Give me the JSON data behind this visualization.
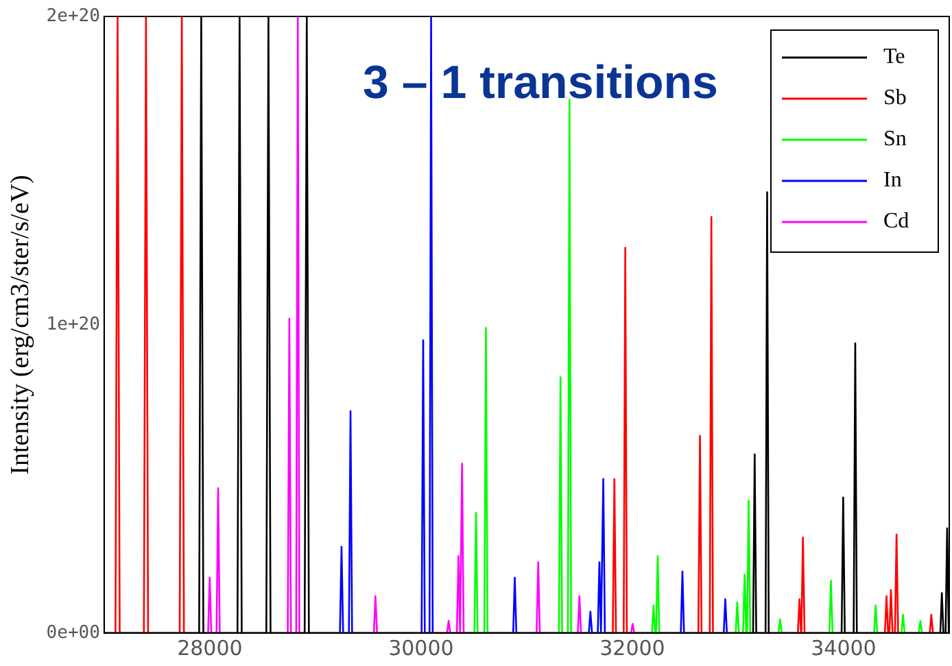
{
  "chart_data": {
    "type": "line",
    "title": "3 – 1 transitions",
    "ylabel": "Intensity (erg/cm3/ster/s/eV)",
    "xlim": [
      27000,
      35000
    ],
    "xticks": [
      28000,
      30000,
      32000,
      34000
    ],
    "ylim": [
      0,
      2e+20
    ],
    "yticks": [
      {
        "value": 0,
        "label": "0e+00"
      },
      {
        "value": 1e+20,
        "label": "1e+20"
      },
      {
        "value": 2e+20,
        "label": "2e+20"
      }
    ],
    "grid": false,
    "legend": "top right",
    "marker": "none",
    "line_style": "solid",
    "series": [
      {
        "name": "Te",
        "color": "#000000",
        "x": [
          27000,
          27899,
          27919,
          27939,
          28262,
          28282,
          28302,
          28535,
          28555,
          28575,
          28898,
          28918,
          28938,
          33143,
          33158,
          33173,
          33261,
          33276,
          33291,
          33981,
          33996,
          34011,
          34095,
          34110,
          34125,
          34915,
          34930,
          34945,
          34965,
          34980,
          34995,
          35000
        ],
        "values": [
          0,
          0,
          2e+20,
          0,
          0,
          2e+20,
          0,
          0,
          2e+20,
          0,
          0,
          2e+20,
          0,
          0,
          5.8e+19,
          0,
          0,
          1.43e+20,
          0,
          0,
          4.4e+19,
          0,
          0,
          9.4e+19,
          0,
          0,
          1.3e+19,
          0,
          0,
          3.4e+19,
          0,
          0
        ]
      },
      {
        "name": "Sb",
        "color": "#ff0000",
        "x": [
          27000,
          27107,
          27127,
          27147,
          27376,
          27396,
          27416,
          27715,
          27735,
          27755,
          31815,
          31830,
          31845,
          31918,
          31933,
          31948,
          32625,
          32640,
          32655,
          32733,
          32748,
          32763,
          33567,
          33582,
          33597,
          33600,
          33615,
          33630,
          34391,
          34406,
          34421,
          34433,
          34448,
          34463,
          34486,
          34501,
          34516,
          34815,
          34830,
          34845,
          35000
        ],
        "values": [
          0,
          0,
          2e+20,
          0,
          0,
          2e+20,
          0,
          0,
          2e+20,
          0,
          0,
          5e+19,
          0,
          0,
          1.25e+20,
          0,
          0,
          6.4e+19,
          0,
          0,
          1.35e+20,
          0,
          0,
          1.1e+19,
          0,
          0,
          3.1e+19,
          0,
          0,
          1.2e+19,
          0,
          0,
          1.4e+19,
          0,
          0,
          3.2e+19,
          0,
          0,
          6e+18,
          0,
          0
        ]
      },
      {
        "name": "Sn",
        "color": "#00ff00",
        "x": [
          27000,
          30505,
          30520,
          30535,
          30599,
          30614,
          30629,
          31305,
          31320,
          31335,
          31390,
          31405,
          31420,
          32186,
          32201,
          32216,
          32225,
          32240,
          32255,
          32978,
          32993,
          33008,
          33048,
          33063,
          33078,
          33086,
          33101,
          33116,
          33384,
          33399,
          33414,
          33865,
          33880,
          33895,
          34288,
          34303,
          34318,
          34547,
          34562,
          34577,
          34712,
          34727,
          34742,
          35000
        ],
        "values": [
          0,
          0,
          3.9e+19,
          0,
          0,
          9.9e+19,
          0,
          0,
          8.3e+19,
          0,
          0,
          1.73e+20,
          0,
          0,
          9e+18,
          0,
          0,
          2.5e+19,
          0,
          0,
          1e+19,
          0,
          0,
          1.9e+19,
          0,
          0,
          4.3e+19,
          0,
          0,
          4.5e+18,
          0,
          0,
          1.7e+19,
          0,
          0,
          9e+18,
          0,
          0,
          6e+18,
          0,
          0,
          4e+18,
          0,
          0
        ]
      },
      {
        "name": "In",
        "color": "#0000ff",
        "x": [
          27000,
          29232,
          29247,
          29262,
          29317,
          29332,
          29347,
          30005,
          30020,
          30035,
          30080,
          30095,
          30110,
          30872,
          30887,
          30902,
          31588,
          31603,
          31618,
          31673,
          31688,
          31703,
          31710,
          31725,
          31740,
          32459,
          32474,
          32489,
          32865,
          32880,
          32895,
          35000
        ],
        "values": [
          0,
          0,
          2.8e+19,
          0,
          0,
          7.2e+19,
          0,
          0,
          9.5e+19,
          0,
          0,
          2e+20,
          0,
          0,
          1.8e+19,
          0,
          0,
          7e+18,
          0,
          0,
          2.3e+19,
          0,
          0,
          5e+19,
          0,
          0,
          2e+19,
          0,
          0,
          1.1e+19,
          0,
          0
        ]
      },
      {
        "name": "Cd",
        "color": "#ff00ff",
        "x": [
          27000,
          27984,
          27999,
          28014,
          28064,
          28079,
          28094,
          28738,
          28753,
          28768,
          28818,
          28833,
          28848,
          29553,
          29568,
          29583,
          30246,
          30261,
          30276,
          30339,
          30354,
          30369,
          30373,
          30388,
          30403,
          31094,
          31109,
          31124,
          31484,
          31499,
          31514,
          31988,
          32003,
          32018,
          35000
        ],
        "values": [
          0,
          0,
          1.8e+19,
          0,
          0,
          4.7e+19,
          0,
          0,
          1.02e+20,
          0,
          0,
          2e+20,
          0,
          0,
          1.2e+19,
          0,
          0,
          4e+18,
          0,
          0,
          2.5e+19,
          0,
          0,
          5.5e+19,
          0,
          0,
          2.3e+19,
          0,
          0,
          1.2e+19,
          0,
          0,
          3e+18,
          0,
          0
        ]
      }
    ]
  }
}
